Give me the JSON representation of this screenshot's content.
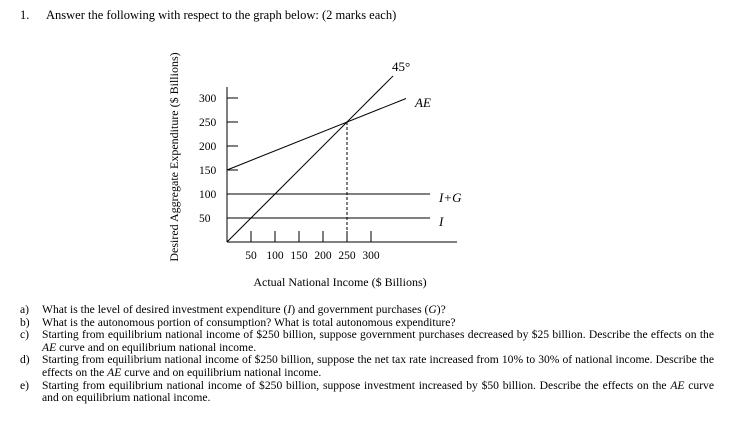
{
  "question": {
    "number": "1.",
    "heading": "Answer the following with respect to the graph below: (2 marks each)"
  },
  "chart_data": {
    "type": "line",
    "title": "",
    "xlabel": "Actual National Income ($ Billions)",
    "ylabel": "Desired Aggregate Expenditure ($ Billions)",
    "xlim": [
      0,
      480
    ],
    "ylim": [
      0,
      320
    ],
    "x_ticks": [
      50,
      100,
      150,
      200,
      250,
      300
    ],
    "x_tick_labels": [
      "50",
      "100",
      "150",
      "200",
      "250",
      "300"
    ],
    "y_ticks": [
      50,
      100,
      150,
      200,
      250,
      300
    ],
    "y_tick_labels": [
      "50",
      "100",
      "150",
      "200",
      "250",
      "300"
    ],
    "grid": false,
    "series": [
      {
        "name": "45°",
        "points": [
          [
            0,
            0
          ],
          [
            346,
            346
          ]
        ]
      },
      {
        "name": "AE",
        "points": [
          [
            0,
            150
          ],
          [
            373,
            299
          ]
        ]
      },
      {
        "name": "I+G",
        "points": [
          [
            0,
            100
          ],
          [
            423,
            100
          ]
        ]
      },
      {
        "name": "I",
        "points": [
          [
            0,
            50
          ],
          [
            423,
            50
          ]
        ]
      }
    ],
    "annotations": [
      {
        "type": "dashed-vertical",
        "x": 250,
        "y_from": 0,
        "y_to": 250,
        "note": "equilibrium"
      }
    ]
  },
  "subquestions": [
    {
      "label": "a)",
      "parts": [
        {
          "t": "What is the level of desired investment expenditure ("
        },
        {
          "t": "I",
          "i": true
        },
        {
          "t": ") and government purchases ("
        },
        {
          "t": "G",
          "i": true
        },
        {
          "t": ")?"
        }
      ]
    },
    {
      "label": "b)",
      "parts": [
        {
          "t": "What is the autonomous portion of consumption?  What is total autonomous expenditure?"
        }
      ]
    },
    {
      "label": "c)",
      "parts": [
        {
          "t": "Starting from equilibrium national income of $250 billion, suppose government purchases decreased by $25 billion. Describe the effects on the "
        },
        {
          "t": "AE",
          "i": true
        },
        {
          "t": " curve and on equilibrium national income."
        }
      ]
    },
    {
      "label": "d)",
      "parts": [
        {
          "t": "Starting from equilibrium national income of $250 billion, suppose the net tax rate increased from 10% to 30% of national income.  Describe the effects on the "
        },
        {
          "t": "AE",
          "i": true
        },
        {
          "t": " curve and on equilibrium national income."
        }
      ]
    },
    {
      "label": "e)",
      "parts": [
        {
          "t": "Starting from equilibrium national income of $250 billion, suppose investment increased by $50 billion.  Describe the effects on the "
        },
        {
          "t": "AE",
          "i": true
        },
        {
          "t": " curve and on equilibrium national income."
        }
      ]
    }
  ]
}
